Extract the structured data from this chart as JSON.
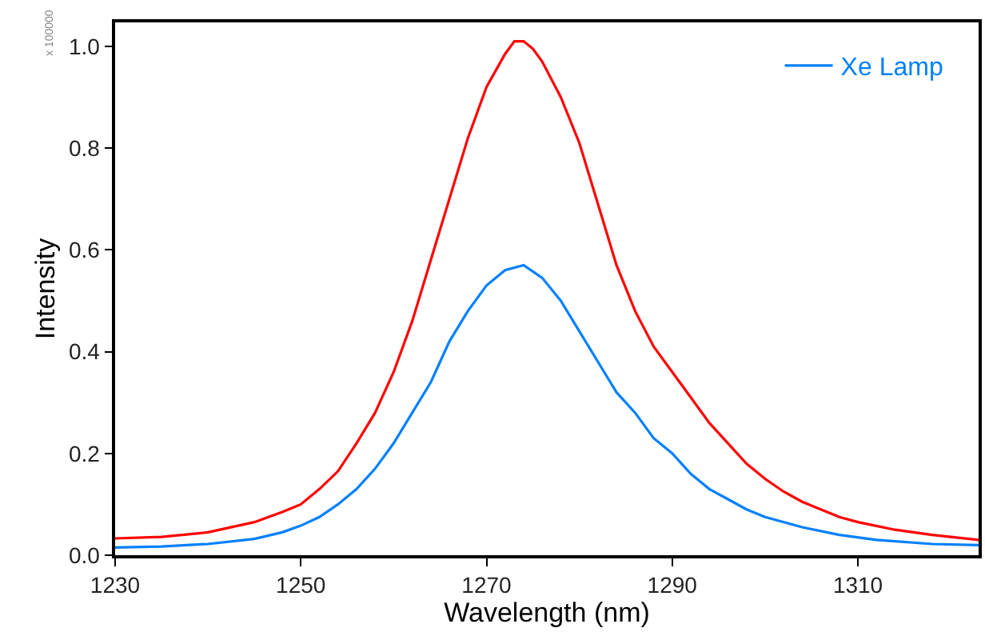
{
  "chart_data": {
    "type": "line",
    "xlabel": "Wavelength (nm)",
    "ylabel": "Intensity",
    "annotations": [
      "x 100000"
    ],
    "xlim": [
      1230,
      1323
    ],
    "xticks": [
      1230,
      1250,
      1270,
      1290,
      1310
    ],
    "ylim": [
      0,
      1.047
    ],
    "yticks": [
      {
        "value": 0,
        "label": "0.0"
      },
      0.2,
      0.4,
      0.6,
      0.8,
      {
        "value": 1,
        "label": "1.0"
      }
    ],
    "legend": "top right",
    "marker": "none",
    "line_style": "solid",
    "series": [
      {
        "color": "#ff0000",
        "x": [
          1230,
          1235,
          1240,
          1245,
          1248,
          1250,
          1252,
          1254,
          1256,
          1258,
          1260,
          1262,
          1264,
          1266,
          1268,
          1270,
          1272,
          1273,
          1274,
          1275,
          1276,
          1278,
          1280,
          1282,
          1284,
          1286,
          1288,
          1290,
          1292,
          1294,
          1296,
          1298,
          1300,
          1302,
          1304,
          1306,
          1308,
          1310,
          1314,
          1318,
          1323
        ],
        "values": [
          0.033,
          0.036,
          0.045,
          0.065,
          0.085,
          0.1,
          0.13,
          0.165,
          0.22,
          0.28,
          0.36,
          0.46,
          0.58,
          0.7,
          0.82,
          0.92,
          0.985,
          1.01,
          1.01,
          0.995,
          0.97,
          0.9,
          0.81,
          0.69,
          0.57,
          0.48,
          0.41,
          0.36,
          0.31,
          0.26,
          0.22,
          0.18,
          0.15,
          0.125,
          0.105,
          0.09,
          0.075,
          0.065,
          0.05,
          0.04,
          0.03
        ]
      },
      {
        "name": "Xe Lamp",
        "color": "#0080ff",
        "x": [
          1230,
          1235,
          1240,
          1245,
          1248,
          1250,
          1252,
          1254,
          1256,
          1258,
          1260,
          1262,
          1264,
          1266,
          1268,
          1270,
          1272,
          1274,
          1276,
          1278,
          1280,
          1282,
          1284,
          1286,
          1288,
          1290,
          1292,
          1294,
          1296,
          1298,
          1300,
          1304,
          1308,
          1312,
          1318,
          1323
        ],
        "values": [
          0.015,
          0.017,
          0.022,
          0.032,
          0.045,
          0.058,
          0.075,
          0.1,
          0.13,
          0.17,
          0.22,
          0.28,
          0.34,
          0.42,
          0.48,
          0.53,
          0.56,
          0.57,
          0.545,
          0.5,
          0.44,
          0.38,
          0.32,
          0.28,
          0.23,
          0.2,
          0.16,
          0.13,
          0.11,
          0.09,
          0.075,
          0.055,
          0.04,
          0.03,
          0.022,
          0.02
        ]
      }
    ]
  }
}
